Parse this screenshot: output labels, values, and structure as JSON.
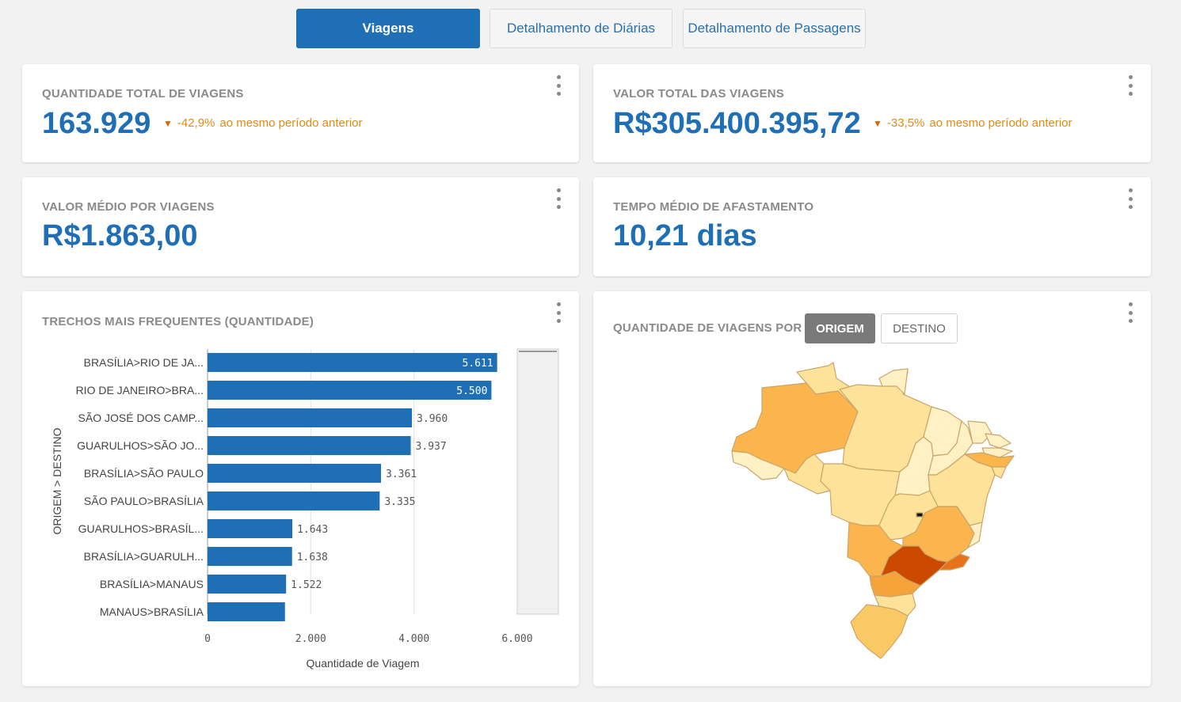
{
  "tabs": [
    {
      "label": "Viagens",
      "active": true
    },
    {
      "label": "Detalhamento de Diárias",
      "active": false
    },
    {
      "label": "Detalhamento de Passagens",
      "active": false
    }
  ],
  "kpis": {
    "total_trips": {
      "title": "QUANTIDADE TOTAL DE VIAGENS",
      "value": "163.929",
      "delta": "-42,9%",
      "delta_text": "ao mesmo período anterior"
    },
    "total_value": {
      "title": "VALOR TOTAL DAS VIAGENS",
      "value": "R$305.400.395,72",
      "delta": "-33,5%",
      "delta_text": "ao mesmo período anterior"
    },
    "avg_value": {
      "title": "VALOR MÉDIO POR VIAGENS",
      "value": "R$1.863,00"
    },
    "avg_time": {
      "title": "TEMPO MÉDIO DE AFASTAMENTO",
      "value": "10,21 dias"
    }
  },
  "routes_card": {
    "title": "TRECHOS MAIS FREQUENTES (QUANTIDADE)"
  },
  "map_card": {
    "title": "QUANTIDADE DE VIAGENS POR",
    "toggle_origin": "ORIGEM",
    "toggle_dest": "DESTINO",
    "selected": "ORIGEM",
    "colors": {
      "low": "#fff1c4",
      "mid": "#fde39a",
      "high": "#fbb54c",
      "very_high": "#f5a33a",
      "top": "#cc4a00"
    }
  },
  "colors": {
    "accent": "#1f6fb6",
    "delta": "#e28a12",
    "bar": "#1f6fb6"
  },
  "chart_data": {
    "type": "bar",
    "orientation": "horizontal",
    "categories": [
      "BRASÍLIA>RIO DE JA...",
      "RIO DE JANEIRO>BRA...",
      "SÃO JOSÉ DOS CAMP...",
      "GUARULHOS>SÃO JO...",
      "BRASÍLIA>SÃO PAULO",
      "SÃO PAULO>BRASÍLIA",
      "GUARULHOS>BRASÍL...",
      "BRASÍLIA>GUARULH...",
      "BRASÍLIA>MANAUS",
      "MANAUS>BRASÍLIA"
    ],
    "values": [
      5611,
      5500,
      3960,
      3937,
      3361,
      3335,
      1643,
      1638,
      1522,
      1500
    ],
    "value_labels": [
      "5.611",
      "5.500",
      "3.960",
      "3.937",
      "3.361",
      "3.335",
      "1.643",
      "1.638",
      "1.522",
      ""
    ],
    "xticks": [
      "0",
      "2.000",
      "4.000",
      "6.000"
    ],
    "xtick_values": [
      0,
      2000,
      4000,
      6000
    ],
    "xlim": [
      0,
      6000
    ],
    "xlabel": "Quantidade de Viagem",
    "ylabel": "ORIGEM > DESTINO",
    "grid": true
  }
}
